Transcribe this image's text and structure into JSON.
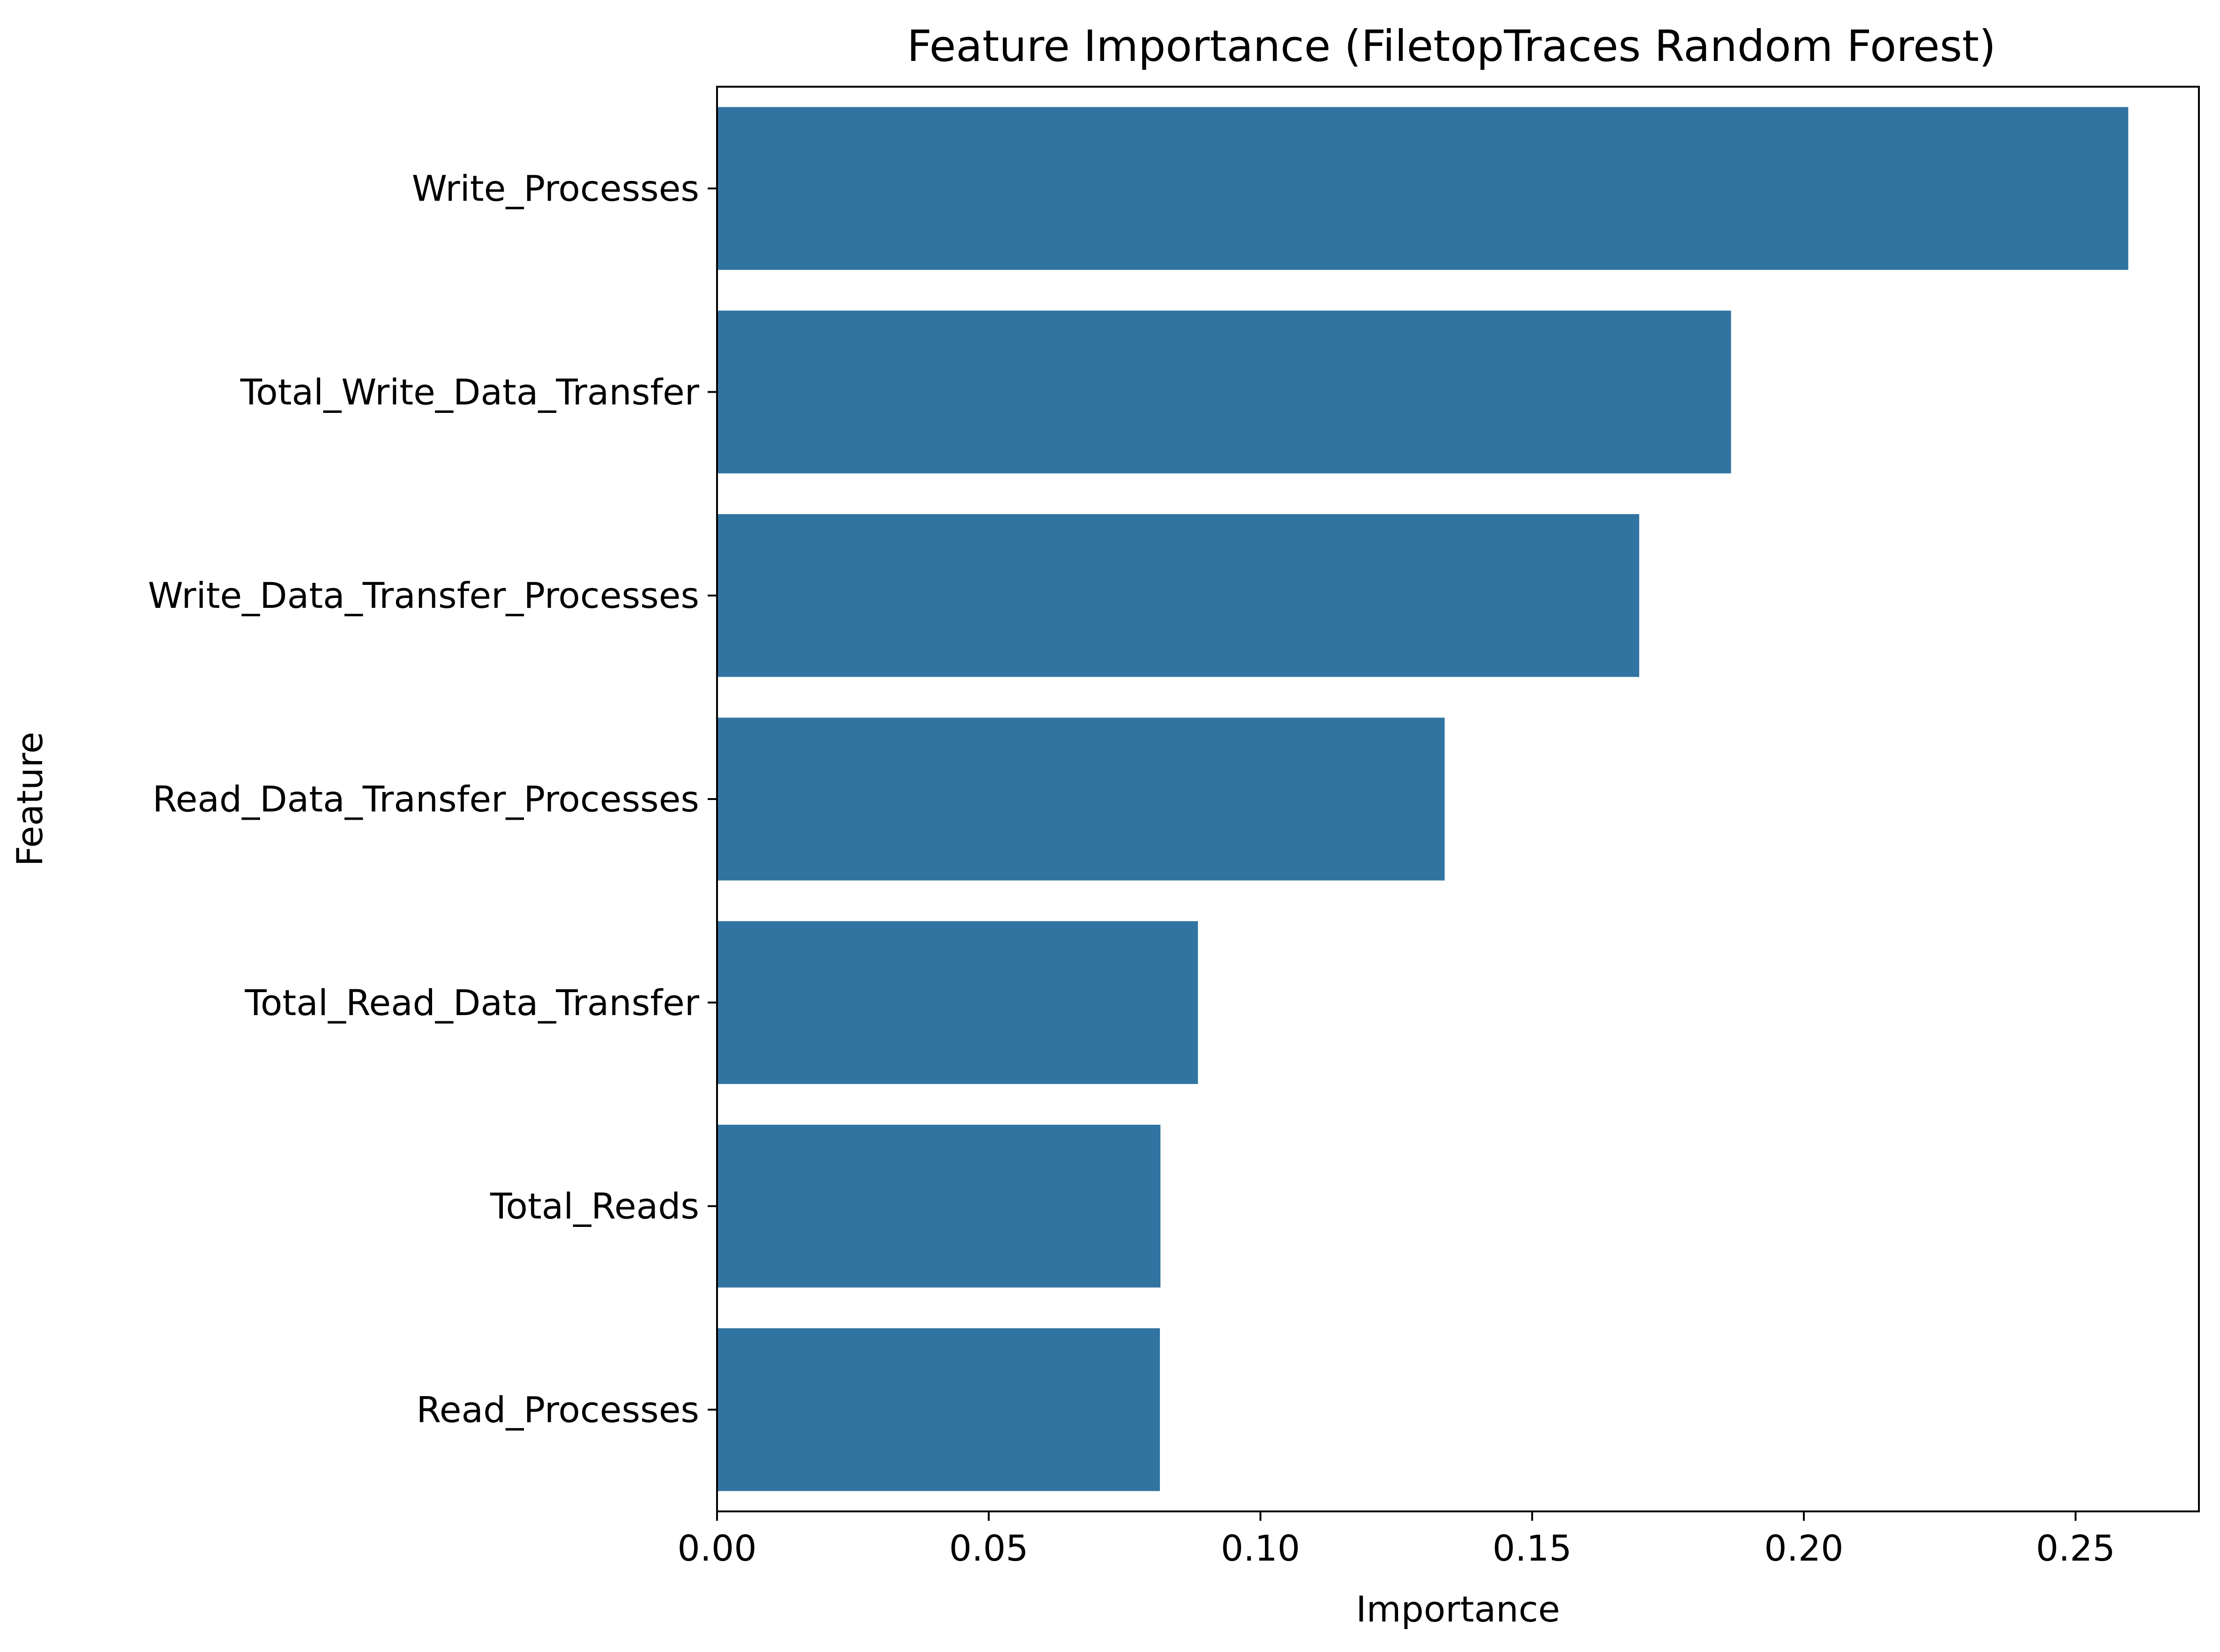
{
  "chart_data": {
    "type": "bar",
    "orientation": "horizontal",
    "title": "Feature Importance (FiletopTraces Random Forest)",
    "xlabel": "Importance",
    "ylabel": "Feature",
    "categories": [
      "Write_Processes",
      "Total_Write_Data_Transfer",
      "Write_Data_Transfer_Processes",
      "Read_Data_Transfer_Processes",
      "Total_Read_Data_Transfer",
      "Total_Reads",
      "Read_Processes"
    ],
    "values": [
      0.2597,
      0.1866,
      0.1697,
      0.1339,
      0.0885,
      0.0816,
      0.0815
    ],
    "xlim": [
      0,
      0.2727
    ],
    "xticks": [
      0.0,
      0.05,
      0.1,
      0.15,
      0.2,
      0.25
    ],
    "xtick_labels": [
      "0.00",
      "0.05",
      "0.10",
      "0.15",
      "0.20",
      "0.25"
    ],
    "bar_color": "#3274a1",
    "grid": false,
    "legend": "none"
  }
}
